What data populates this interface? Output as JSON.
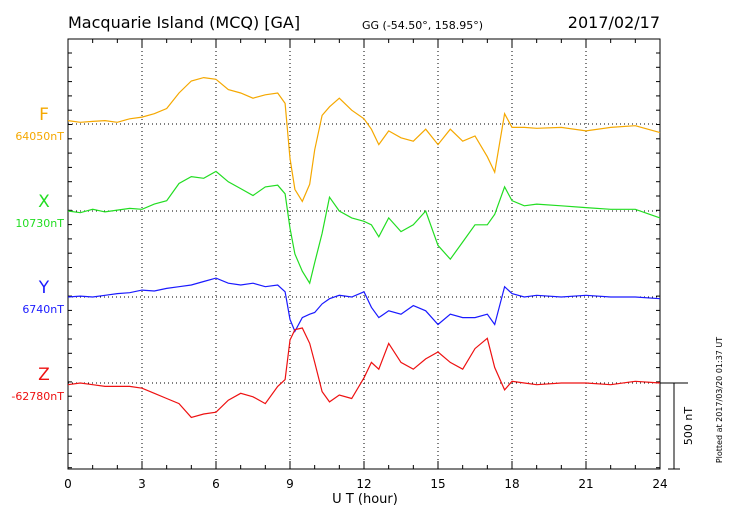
{
  "header": {
    "station": "Macquarie Island (MCQ)  [GA]",
    "coords": "GG (-54.50°, 158.95°)",
    "date": "2017/02/17"
  },
  "plotted_note": "Plotted at 2017/03/20 01:37 UT",
  "scale_bar_label": "500 nT",
  "chart_data": {
    "type": "line",
    "xlabel": "U T (hour)",
    "xlim": [
      0,
      24
    ],
    "x_ticks": [
      "0",
      "3",
      "6",
      "9",
      "12",
      "15",
      "18",
      "21",
      "24"
    ],
    "grid": "dotted",
    "scale_nT": 500,
    "series": [
      {
        "name": "F",
        "baseline_label": "64050nT",
        "color": "#f5a800",
        "x": [
          0,
          0.5,
          1,
          1.5,
          2,
          2.5,
          3,
          3.5,
          4,
          4.5,
          5,
          5.5,
          6,
          6.5,
          7,
          7.5,
          8,
          8.5,
          8.8,
          9.0,
          9.2,
          9.5,
          9.8,
          10.0,
          10.3,
          10.6,
          11,
          11.5,
          12,
          12.3,
          12.6,
          13,
          13.5,
          14,
          14.5,
          15,
          15.5,
          16,
          16.5,
          17,
          17.3,
          17.7,
          18,
          18.5,
          19,
          20,
          21,
          22,
          23,
          24
        ],
        "y": [
          20,
          10,
          15,
          20,
          10,
          30,
          40,
          60,
          90,
          180,
          250,
          270,
          260,
          200,
          180,
          150,
          170,
          180,
          120,
          -200,
          -380,
          -450,
          -350,
          -150,
          50,
          100,
          150,
          80,
          30,
          -30,
          -120,
          -40,
          -80,
          -100,
          -30,
          -120,
          -30,
          -100,
          -70,
          -190,
          -280,
          60,
          -20,
          -20,
          -25,
          -20,
          -40,
          -20,
          -10,
          -50
        ]
      },
      {
        "name": "X",
        "baseline_label": "10730nT",
        "color": "#22dd22",
        "x": [
          0,
          0.5,
          1,
          1.5,
          2,
          2.5,
          3,
          3.5,
          4,
          4.5,
          5,
          5.5,
          6,
          6.5,
          7,
          7.5,
          8,
          8.5,
          8.8,
          9.0,
          9.2,
          9.5,
          9.8,
          10.0,
          10.3,
          10.6,
          11,
          11.5,
          12,
          12.3,
          12.6,
          13,
          13.5,
          14,
          14.5,
          15,
          15.5,
          16,
          16.5,
          17,
          17.3,
          17.7,
          18,
          18.5,
          19,
          20,
          21,
          22,
          23,
          24
        ],
        "y": [
          0,
          -10,
          10,
          -5,
          5,
          15,
          10,
          40,
          60,
          160,
          200,
          190,
          230,
          170,
          130,
          90,
          140,
          150,
          100,
          -100,
          -250,
          -350,
          -420,
          -300,
          -130,
          80,
          0,
          -40,
          -60,
          -80,
          -150,
          -40,
          -120,
          -80,
          0,
          -200,
          -280,
          -180,
          -80,
          -80,
          -20,
          140,
          60,
          30,
          40,
          30,
          20,
          10,
          10,
          -40
        ]
      },
      {
        "name": "Y",
        "baseline_label": "6740nT",
        "color": "#1a1aff",
        "x": [
          0,
          0.5,
          1,
          1.5,
          2,
          2.5,
          3,
          3.5,
          4,
          4.5,
          5,
          5.5,
          6,
          6.5,
          7,
          7.5,
          8,
          8.5,
          8.8,
          9.0,
          9.2,
          9.5,
          9.8,
          10.0,
          10.3,
          10.6,
          11,
          11.5,
          12,
          12.3,
          12.6,
          13,
          13.5,
          14,
          14.5,
          15,
          15.5,
          16,
          16.5,
          17,
          17.3,
          17.7,
          18,
          18.5,
          19,
          20,
          21,
          22,
          23,
          24
        ],
        "y": [
          0,
          5,
          0,
          10,
          20,
          25,
          40,
          35,
          50,
          60,
          70,
          90,
          110,
          80,
          70,
          80,
          60,
          70,
          30,
          -130,
          -200,
          -120,
          -100,
          -90,
          -40,
          -10,
          10,
          0,
          30,
          -60,
          -120,
          -80,
          -100,
          -50,
          -80,
          -160,
          -100,
          -120,
          -120,
          -100,
          -160,
          60,
          20,
          0,
          10,
          0,
          10,
          0,
          0,
          -10
        ]
      },
      {
        "name": "Z",
        "baseline_label": "-62780nT",
        "color": "#ee1111",
        "x": [
          0,
          0.5,
          1,
          1.5,
          2,
          2.5,
          3,
          3.5,
          4,
          4.5,
          5,
          5.5,
          6,
          6.5,
          7,
          7.5,
          8,
          8.5,
          8.8,
          9.0,
          9.2,
          9.5,
          9.8,
          10.0,
          10.3,
          10.6,
          11,
          11.5,
          12,
          12.3,
          12.6,
          13,
          13.5,
          14,
          14.5,
          15,
          15.5,
          16,
          16.5,
          17,
          17.3,
          17.7,
          18,
          18.5,
          19,
          20,
          21,
          22,
          23,
          24
        ],
        "y": [
          -10,
          0,
          -10,
          -20,
          -20,
          -20,
          -30,
          -60,
          -90,
          -120,
          -200,
          -180,
          -170,
          -100,
          -60,
          -80,
          -120,
          -20,
          20,
          250,
          310,
          320,
          230,
          120,
          -50,
          -110,
          -70,
          -90,
          30,
          120,
          80,
          230,
          120,
          80,
          140,
          180,
          120,
          80,
          200,
          260,
          90,
          -40,
          10,
          0,
          -10,
          0,
          0,
          -10,
          10,
          0
        ]
      }
    ]
  }
}
